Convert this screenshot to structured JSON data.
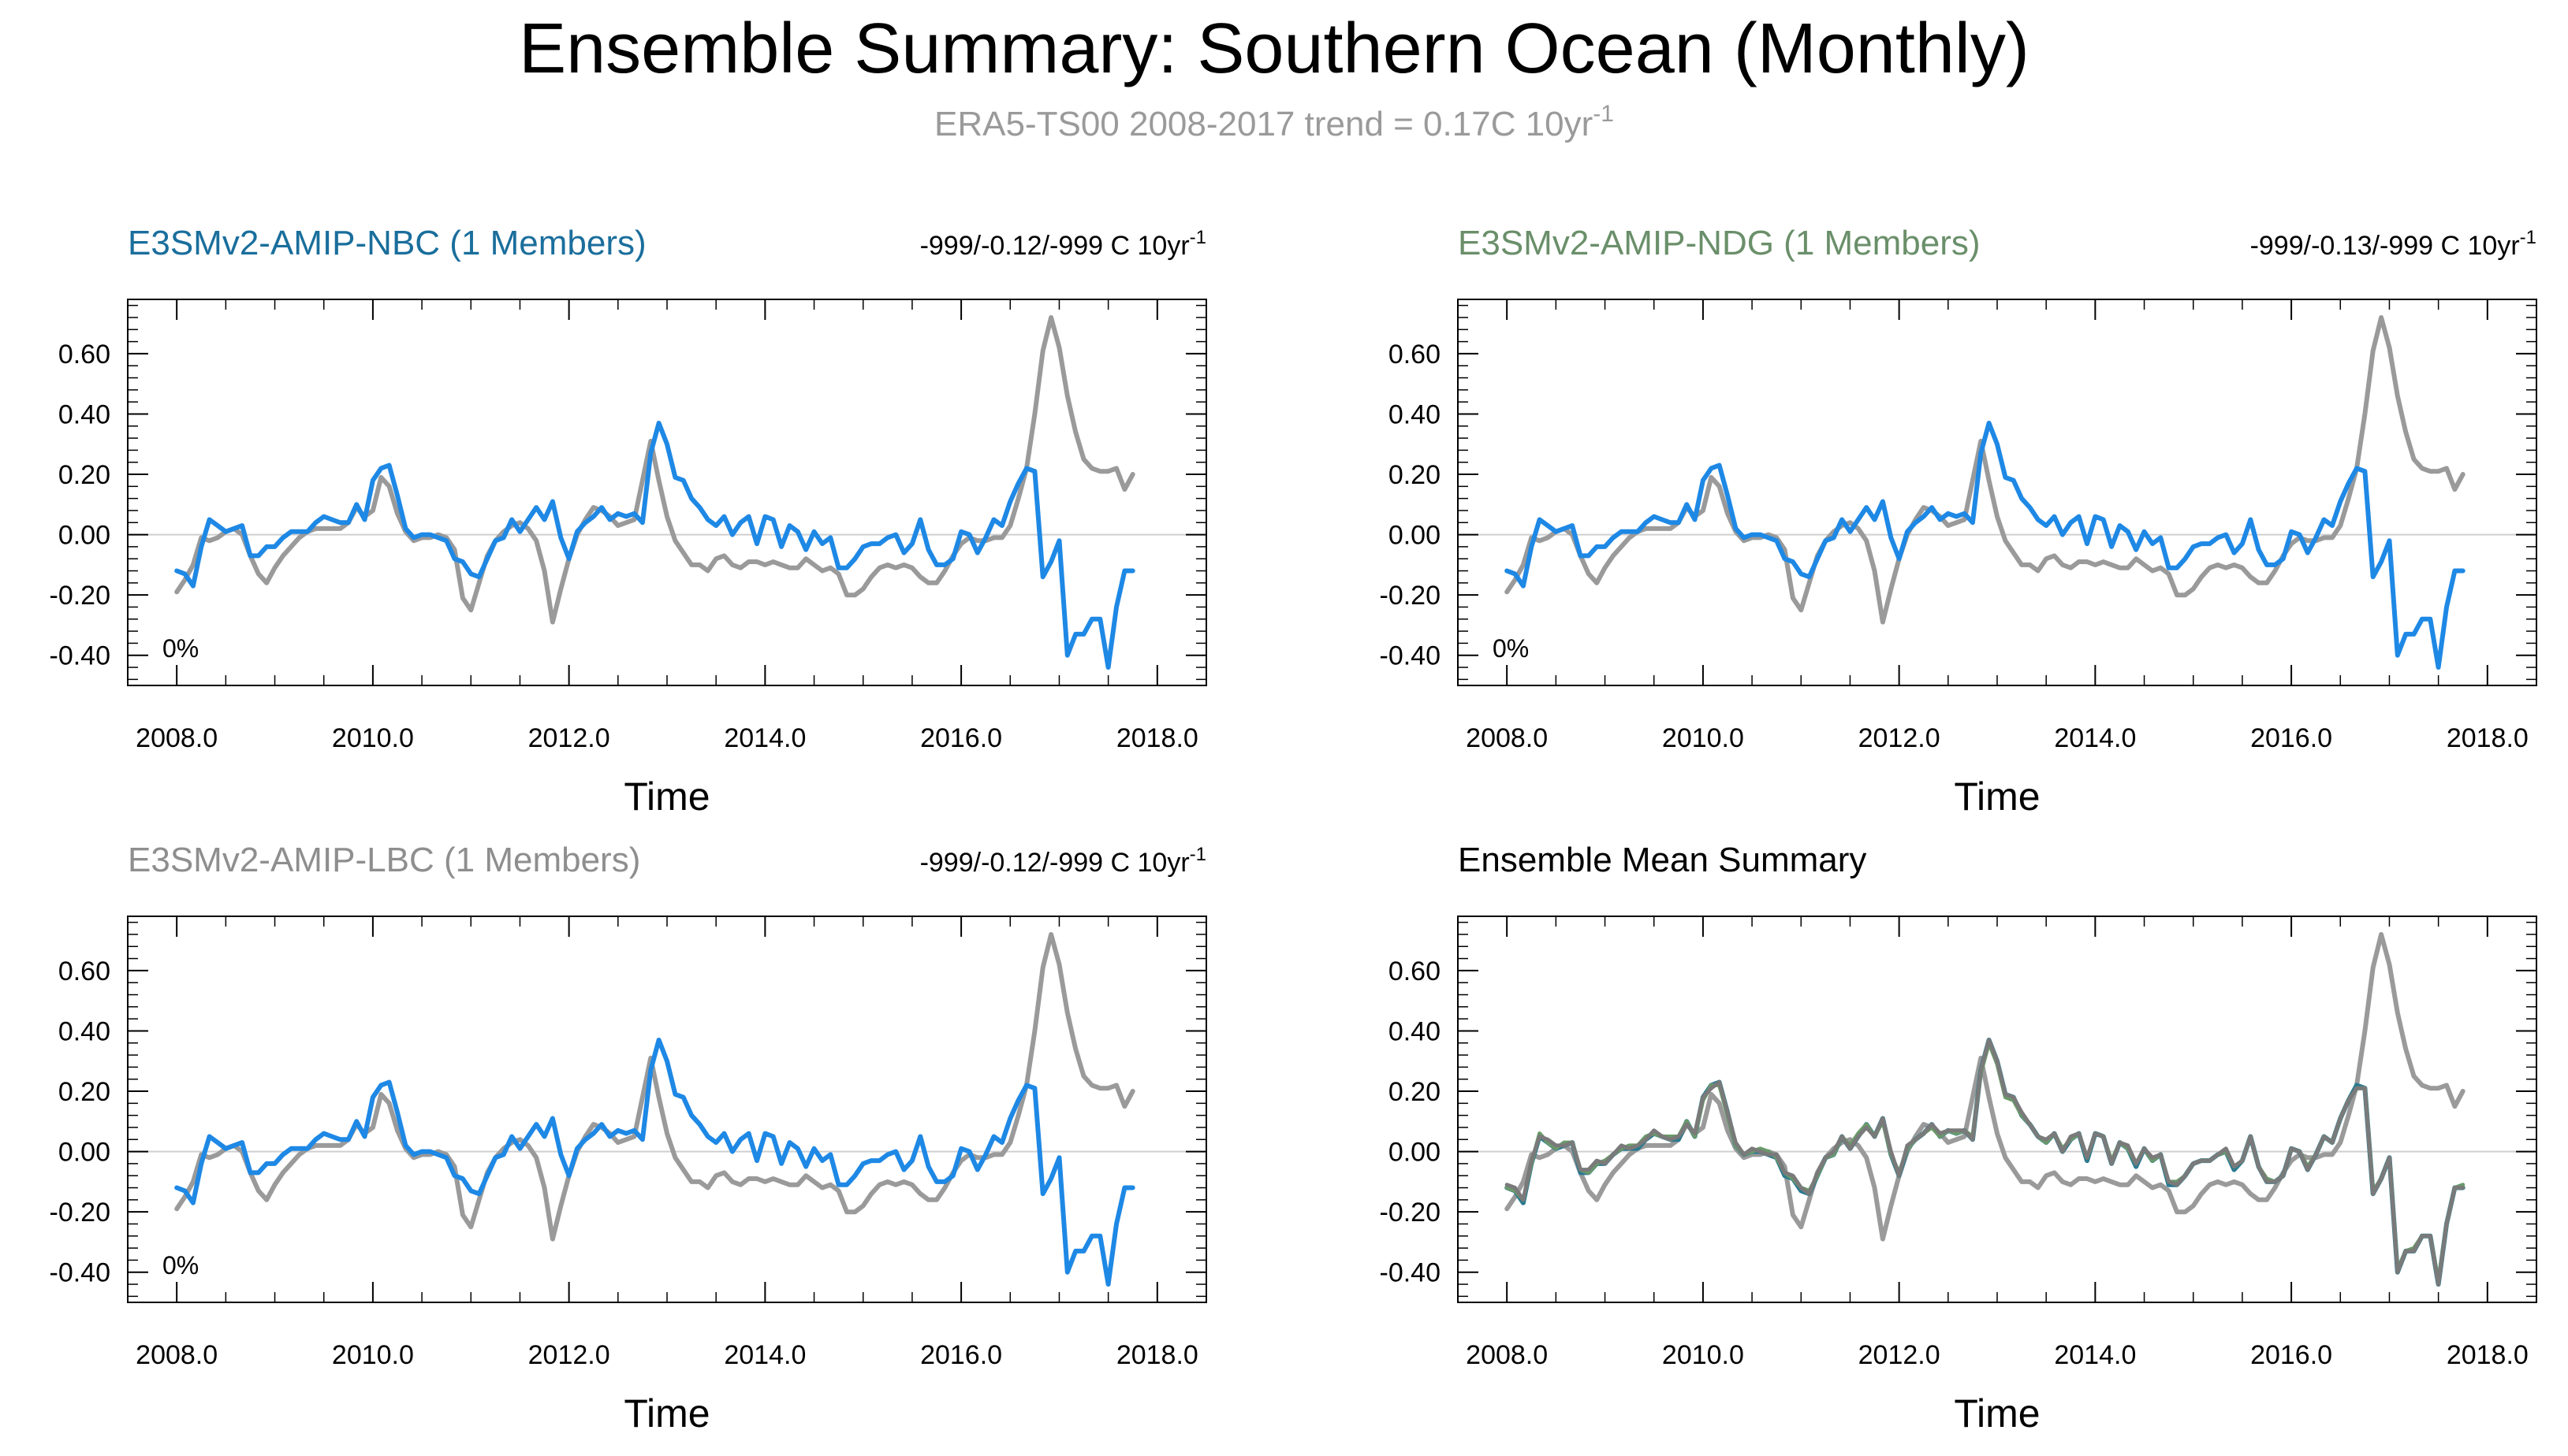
{
  "figure": {
    "title": "Ensemble Summary: Southern Ocean (Monthly)",
    "subtitle_main": "ERA5-TS00 2008-2017 trend = 0.17C 10yr",
    "subtitle_sup": "-1"
  },
  "colors": {
    "obs": "#9a9a9a",
    "model_blue": "#1e88e5",
    "nbc_title": "#1a6e9c",
    "ndg_title": "#6a8f6a",
    "lbc_title": "#8e8e8e",
    "mean_teal": "#2a7a90",
    "mean_green": "#6a9a6a",
    "mean_gray": "#7a7a7a",
    "zero_line": "#cfcfcf"
  },
  "chart_data": [
    {
      "type": "line",
      "panel": "nbc",
      "title": "E3SMv2-AMIP-NBC (1 Members)",
      "trend_main": "-999/-0.12/-999 C 10yr",
      "trend_sup": "-1",
      "percent_label": "0%",
      "xlabel": "Time",
      "xlim": [
        2007.5,
        2018.5
      ],
      "ylim": [
        -0.5,
        0.78
      ],
      "xticks": [
        "2008.0",
        "2010.0",
        "2012.0",
        "2014.0",
        "2016.0",
        "2018.0"
      ],
      "yticks": [
        "0.60",
        "0.40",
        "0.20",
        "0.00",
        "-0.20",
        "-0.40"
      ],
      "series": [
        "obs",
        "model"
      ]
    },
    {
      "type": "line",
      "panel": "ndg",
      "title": "E3SMv2-AMIP-NDG (1 Members)",
      "trend_main": "-999/-0.13/-999 C 10yr",
      "trend_sup": "-1",
      "percent_label": "0%",
      "xlabel": "Time",
      "xlim": [
        2007.5,
        2018.5
      ],
      "ylim": [
        -0.5,
        0.78
      ],
      "xticks": [
        "2008.0",
        "2010.0",
        "2012.0",
        "2014.0",
        "2016.0",
        "2018.0"
      ],
      "yticks": [
        "0.60",
        "0.40",
        "0.20",
        "0.00",
        "-0.20",
        "-0.40"
      ],
      "series": [
        "obs",
        "model"
      ]
    },
    {
      "type": "line",
      "panel": "lbc",
      "title": "E3SMv2-AMIP-LBC (1 Members)",
      "trend_main": "-999/-0.12/-999 C 10yr",
      "trend_sup": "-1",
      "percent_label": "0%",
      "xlabel": "Time",
      "xlim": [
        2007.5,
        2018.5
      ],
      "ylim": [
        -0.5,
        0.78
      ],
      "xticks": [
        "2008.0",
        "2010.0",
        "2012.0",
        "2014.0",
        "2016.0",
        "2018.0"
      ],
      "yticks": [
        "0.60",
        "0.40",
        "0.20",
        "0.00",
        "-0.20",
        "-0.40"
      ],
      "series": [
        "obs",
        "model"
      ]
    },
    {
      "type": "line",
      "panel": "mean",
      "title": "Ensemble Mean Summary",
      "xlabel": "Time",
      "xlim": [
        2007.5,
        2018.5
      ],
      "ylim": [
        -0.5,
        0.78
      ],
      "xticks": [
        "2008.0",
        "2010.0",
        "2012.0",
        "2014.0",
        "2016.0",
        "2018.0"
      ],
      "yticks": [
        "0.60",
        "0.40",
        "0.20",
        "0.00",
        "-0.20",
        "-0.40"
      ],
      "series": [
        "obs",
        "mean_teal",
        "mean_green",
        "mean_gray"
      ]
    }
  ],
  "series_data": {
    "x_start": 2008.0,
    "x_step_months": 1,
    "obs": [
      -0.19,
      -0.15,
      -0.1,
      -0.01,
      -0.02,
      -0.01,
      0.01,
      0.02,
      0.0,
      -0.07,
      -0.13,
      -0.16,
      -0.11,
      -0.07,
      -0.04,
      -0.01,
      0.01,
      0.02,
      0.02,
      0.02,
      0.02,
      0.04,
      0.09,
      0.06,
      0.08,
      0.19,
      0.16,
      0.07,
      0.01,
      -0.02,
      -0.01,
      -0.01,
      0.0,
      -0.01,
      -0.05,
      -0.21,
      -0.25,
      -0.16,
      -0.07,
      -0.02,
      0.01,
      0.03,
      0.04,
      0.02,
      -0.02,
      -0.12,
      -0.29,
      -0.18,
      -0.08,
      0.0,
      0.05,
      0.09,
      0.08,
      0.06,
      0.03,
      0.04,
      0.05,
      0.18,
      0.31,
      0.18,
      0.06,
      -0.02,
      -0.06,
      -0.1,
      -0.1,
      -0.12,
      -0.08,
      -0.07,
      -0.1,
      -0.11,
      -0.09,
      -0.09,
      -0.1,
      -0.09,
      -0.1,
      -0.11,
      -0.11,
      -0.08,
      -0.1,
      -0.12,
      -0.11,
      -0.13,
      -0.2,
      -0.2,
      -0.18,
      -0.14,
      -0.11,
      -0.1,
      -0.11,
      -0.1,
      -0.11,
      -0.14,
      -0.16,
      -0.16,
      -0.12,
      -0.07,
      -0.03,
      -0.01,
      -0.02,
      -0.02,
      -0.01,
      -0.01,
      0.03,
      0.12,
      0.22,
      0.4,
      0.61,
      0.72,
      0.62,
      0.46,
      0.34,
      0.25,
      0.22,
      0.21,
      0.21,
      0.22,
      0.15,
      0.2
    ],
    "model": [
      -0.12,
      -0.13,
      -0.17,
      -0.04,
      0.05,
      0.03,
      0.01,
      0.02,
      0.03,
      -0.07,
      -0.07,
      -0.04,
      -0.04,
      -0.01,
      0.01,
      0.01,
      0.01,
      0.04,
      0.06,
      0.05,
      0.04,
      0.04,
      0.1,
      0.05,
      0.18,
      0.22,
      0.23,
      0.13,
      0.02,
      -0.01,
      0.0,
      0.0,
      -0.01,
      -0.02,
      -0.08,
      -0.09,
      -0.13,
      -0.14,
      -0.08,
      -0.02,
      -0.01,
      0.05,
      0.01,
      0.05,
      0.09,
      0.05,
      0.11,
      -0.01,
      -0.08,
      0.01,
      0.04,
      0.06,
      0.09,
      0.05,
      0.07,
      0.06,
      0.07,
      0.04,
      0.27,
      0.37,
      0.3,
      0.19,
      0.18,
      0.12,
      0.09,
      0.05,
      0.03,
      0.06,
      0.0,
      0.04,
      0.06,
      -0.03,
      0.06,
      0.05,
      -0.04,
      0.03,
      0.01,
      -0.05,
      0.01,
      -0.03,
      -0.01,
      -0.11,
      -0.11,
      -0.08,
      -0.04,
      -0.03,
      -0.03,
      -0.01,
      0.0,
      -0.06,
      -0.03,
      0.05,
      -0.05,
      -0.1,
      -0.1,
      -0.08,
      0.01,
      0.0,
      -0.06,
      -0.01,
      0.05,
      0.03,
      0.11,
      0.17,
      0.22,
      0.21,
      -0.14,
      -0.09,
      -0.02,
      -0.4,
      -0.33,
      -0.33,
      -0.28,
      -0.28,
      -0.44,
      -0.24,
      -0.12,
      -0.12
    ],
    "mean_green": [
      -0.12,
      -0.13,
      -0.16,
      -0.04,
      0.06,
      0.03,
      0.01,
      0.03,
      0.03,
      -0.06,
      -0.07,
      -0.04,
      -0.03,
      -0.01,
      0.01,
      0.02,
      0.02,
      0.05,
      0.06,
      0.05,
      0.05,
      0.05,
      0.1,
      0.05,
      0.17,
      0.22,
      0.22,
      0.12,
      0.02,
      -0.01,
      0.0,
      0.01,
      0.0,
      -0.02,
      -0.07,
      -0.09,
      -0.12,
      -0.13,
      -0.08,
      -0.02,
      -0.01,
      0.05,
      0.02,
      0.06,
      0.09,
      0.05,
      0.1,
      -0.01,
      -0.07,
      0.01,
      0.04,
      0.06,
      0.08,
      0.05,
      0.07,
      0.06,
      0.07,
      0.05,
      0.26,
      0.36,
      0.29,
      0.18,
      0.17,
      0.12,
      0.09,
      0.05,
      0.03,
      0.06,
      0.01,
      0.04,
      0.06,
      -0.02,
      0.06,
      0.05,
      -0.03,
      0.03,
      0.01,
      -0.04,
      0.01,
      -0.03,
      -0.01,
      -0.1,
      -0.1,
      -0.08,
      -0.04,
      -0.03,
      -0.03,
      -0.01,
      0.0,
      -0.05,
      -0.03,
      0.05,
      -0.05,
      -0.09,
      -0.1,
      -0.08,
      0.01,
      0.0,
      -0.05,
      -0.01,
      0.05,
      0.03,
      0.11,
      0.17,
      0.21,
      0.21,
      -0.13,
      -0.09,
      -0.02,
      -0.39,
      -0.33,
      -0.32,
      -0.28,
      -0.28,
      -0.43,
      -0.24,
      -0.12,
      -0.11
    ],
    "mean_gray": [
      -0.11,
      -0.12,
      -0.16,
      -0.03,
      0.05,
      0.04,
      0.02,
      0.02,
      0.03,
      -0.06,
      -0.06,
      -0.03,
      -0.04,
      -0.01,
      0.02,
      0.01,
      0.02,
      0.04,
      0.07,
      0.05,
      0.04,
      0.05,
      0.09,
      0.06,
      0.18,
      0.21,
      0.23,
      0.13,
      0.03,
      -0.01,
      0.01,
      0.0,
      -0.01,
      -0.01,
      -0.07,
      -0.08,
      -0.12,
      -0.14,
      -0.07,
      -0.02,
      0.0,
      0.05,
      0.01,
      0.05,
      0.08,
      0.05,
      0.11,
      0.0,
      -0.08,
      0.02,
      0.04,
      0.06,
      0.09,
      0.06,
      0.07,
      0.07,
      0.07,
      0.04,
      0.27,
      0.37,
      0.3,
      0.19,
      0.18,
      0.13,
      0.09,
      0.05,
      0.04,
      0.06,
      0.0,
      0.05,
      0.06,
      -0.02,
      0.06,
      0.05,
      -0.04,
      0.03,
      0.02,
      -0.04,
      0.01,
      -0.02,
      -0.01,
      -0.1,
      -0.11,
      -0.08,
      -0.04,
      -0.03,
      -0.03,
      -0.01,
      0.01,
      -0.05,
      -0.03,
      0.05,
      -0.05,
      -0.1,
      -0.1,
      -0.08,
      0.01,
      0.0,
      -0.06,
      -0.01,
      0.05,
      0.03,
      0.11,
      0.17,
      0.21,
      0.21,
      -0.14,
      -0.09,
      -0.02,
      -0.4,
      -0.33,
      -0.33,
      -0.28,
      -0.28,
      -0.44,
      -0.24,
      -0.12,
      -0.12
    ]
  }
}
